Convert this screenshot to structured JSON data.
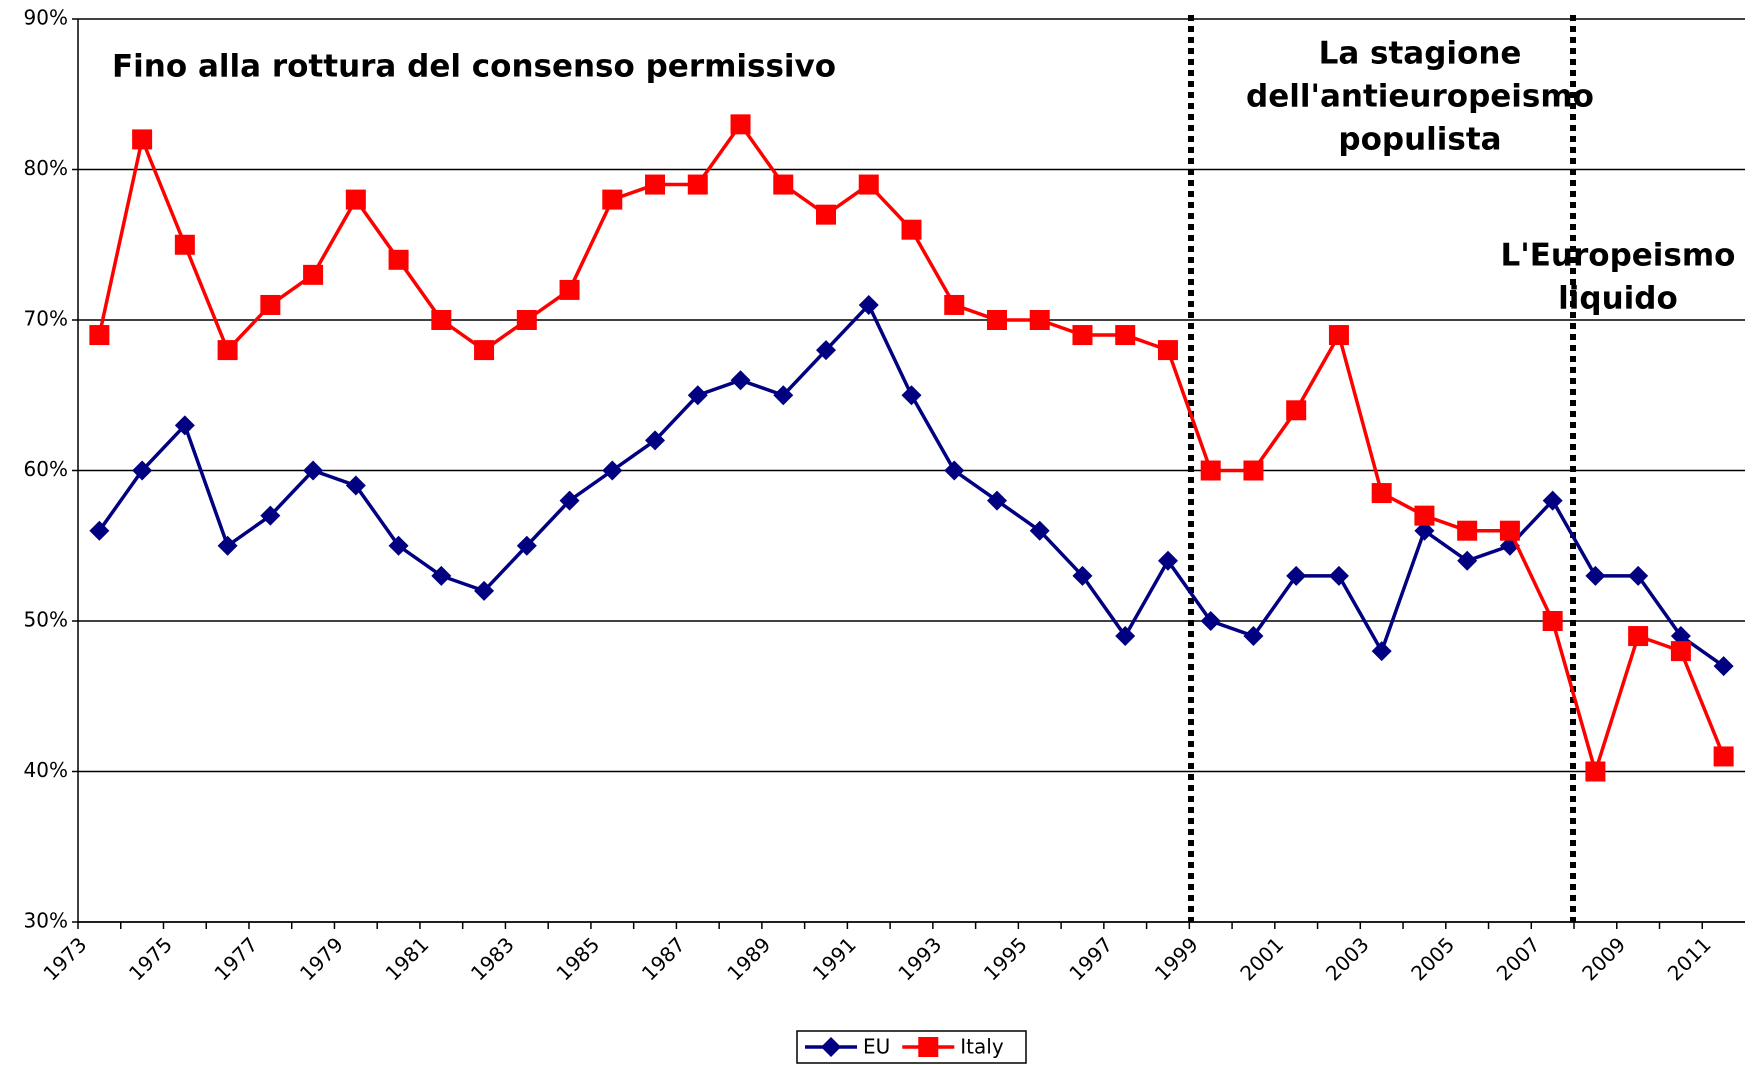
{
  "chart_data": {
    "type": "line",
    "categories": [
      "1973",
      null,
      "1975",
      null,
      "1977",
      null,
      "1979",
      null,
      "1981",
      null,
      "1983",
      null,
      "1985",
      null,
      "1987",
      null,
      "1989",
      null,
      "1991",
      null,
      "1993",
      null,
      "1995",
      null,
      "1997",
      null,
      "1999",
      null,
      "2001",
      null,
      "2003",
      null,
      "2005",
      null,
      "2007",
      null,
      "2009",
      null,
      "2011"
    ],
    "series": [
      {
        "name": "EU",
        "color": "#000080",
        "values": [
          56,
          60,
          63,
          55,
          57,
          60,
          59,
          55,
          53,
          52,
          55,
          58,
          60,
          62,
          65,
          66,
          65,
          68,
          71,
          65,
          60,
          58,
          56,
          53,
          49,
          54,
          50,
          49,
          53,
          53,
          48,
          56,
          54,
          55,
          58,
          53,
          53,
          49,
          47
        ]
      },
      {
        "name": "Italy",
        "color": "#ff0000",
        "values": [
          69,
          82,
          75,
          68,
          71,
          73,
          78,
          74,
          70,
          68,
          70,
          72,
          78,
          79,
          79,
          83,
          79,
          77,
          79,
          76,
          71,
          70,
          70,
          69,
          69,
          68,
          60,
          60,
          64,
          69,
          58.5,
          57,
          56,
          56,
          50,
          40,
          49,
          48,
          41
        ]
      }
    ],
    "ylim": [
      30,
      90
    ],
    "yticks": [
      {
        "value": 30,
        "label": "30%"
      },
      {
        "value": 40,
        "label": "40%"
      },
      {
        "value": 50,
        "label": "50%"
      },
      {
        "value": 60,
        "label": "60%"
      },
      {
        "value": 70,
        "label": "70%"
      },
      {
        "value": 80,
        "label": "80%"
      },
      {
        "value": 90,
        "label": "90%"
      }
    ],
    "grid": true,
    "annotations": [
      [
        "Fino alla rottura del consenso permissivo"
      ],
      [
        "La stagione",
        "dell'antieuropeismo",
        "populista"
      ],
      [
        "L'Europeismo",
        "liquido"
      ]
    ]
  }
}
